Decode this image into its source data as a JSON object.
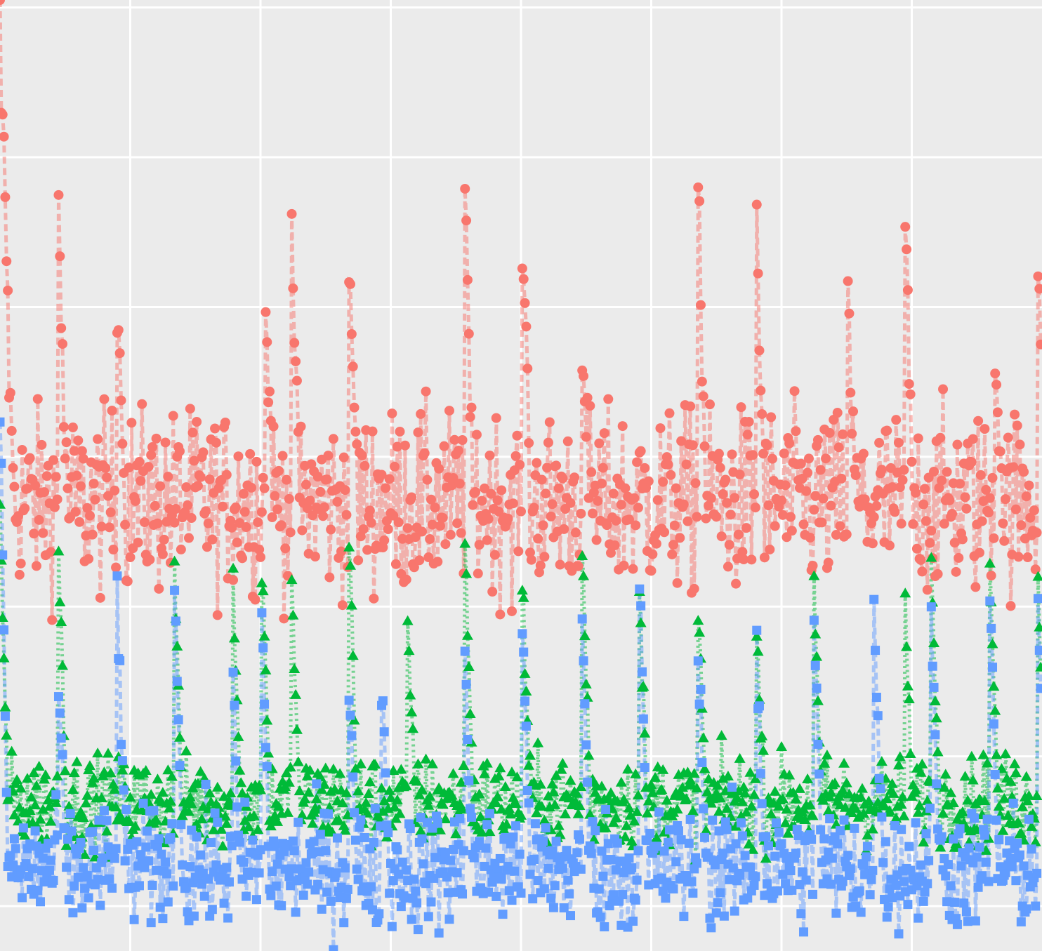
{
  "chart_data": {
    "type": "line",
    "title": "",
    "xlabel": "",
    "ylabel": "",
    "grid": true,
    "legend": "none",
    "xlim": [
      0,
      800
    ],
    "ylim": [
      0,
      1.27
    ],
    "x_gridlines_major": [
      100,
      200,
      300,
      400,
      500,
      600,
      700
    ],
    "y_gridlines_major": [
      0.06,
      0.26,
      0.46,
      0.66,
      0.86,
      1.06,
      1.26
    ],
    "series": [
      {
        "key": "red",
        "color": "#F8766D",
        "marker": "circle",
        "line": "dashed",
        "baseline": 0.6,
        "noise": 0.06,
        "spikes": [
          [
            0,
            1.27
          ],
          [
            2,
            1.14
          ],
          [
            3,
            1.08
          ],
          [
            4,
            0.96
          ],
          [
            45,
            0.98
          ],
          [
            90,
            0.85
          ],
          [
            204,
            0.85
          ],
          [
            224,
            0.96
          ],
          [
            268,
            0.93
          ],
          [
            357,
            1.03
          ],
          [
            401,
            0.95
          ],
          [
            447,
            0.81
          ],
          [
            536,
            1.03
          ],
          [
            581,
            0.94
          ],
          [
            651,
            0.87
          ],
          [
            695,
            0.97
          ],
          [
            764,
            0.78
          ],
          [
            797,
            0.91
          ]
        ],
        "ranges": [
          [
            0.25,
            1.27
          ]
        ]
      },
      {
        "key": "green",
        "color": "#00BA38",
        "marker": "triangle",
        "line": "dotted",
        "baseline": 0.2,
        "noise": 0.03,
        "spikes": [
          [
            0,
            0.6
          ],
          [
            45,
            0.54
          ],
          [
            134,
            0.51
          ],
          [
            179,
            0.49
          ],
          [
            201,
            0.51
          ],
          [
            224,
            0.48
          ],
          [
            268,
            0.56
          ],
          [
            313,
            0.45
          ],
          [
            357,
            0.55
          ],
          [
            401,
            0.5
          ],
          [
            447,
            0.53
          ],
          [
            491,
            0.47
          ],
          [
            536,
            0.46
          ],
          [
            581,
            0.44
          ],
          [
            625,
            0.48
          ],
          [
            695,
            0.46
          ],
          [
            715,
            0.5
          ],
          [
            760,
            0.53
          ],
          [
            797,
            0.48
          ]
        ],
        "ranges": [
          [
            0.12,
            0.6
          ]
        ]
      },
      {
        "key": "blue",
        "color": "#619CFF",
        "marker": "square",
        "line": "dashed",
        "baseline": 0.11,
        "noise": 0.04,
        "spikes": [
          [
            0,
            0.71
          ],
          [
            45,
            0.36
          ],
          [
            90,
            0.48
          ],
          [
            134,
            0.49
          ],
          [
            179,
            0.34
          ],
          [
            201,
            0.45
          ],
          [
            268,
            0.37
          ],
          [
            293,
            0.36
          ],
          [
            357,
            0.41
          ],
          [
            401,
            0.46
          ],
          [
            447,
            0.42
          ],
          [
            491,
            0.51
          ],
          [
            536,
            0.39
          ],
          [
            581,
            0.4
          ],
          [
            625,
            0.44
          ],
          [
            671,
            0.47
          ],
          [
            715,
            0.48
          ],
          [
            760,
            0.48
          ],
          [
            797,
            0.47
          ]
        ],
        "ranges": [
          [
            0.0,
            0.71
          ]
        ]
      }
    ],
    "x_count": 800
  }
}
